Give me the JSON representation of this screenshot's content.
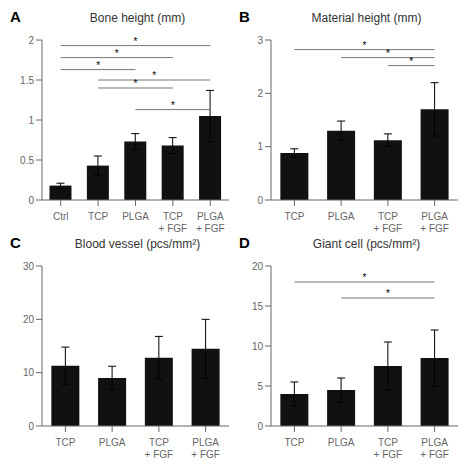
{
  "chart_data": [
    {
      "type": "bar",
      "title": "Bone height (mm)",
      "annotations": [
        "A"
      ],
      "categories": [
        "Ctrl",
        "TCP",
        "PLGA",
        "TCP\n+ FGF",
        "PLGA\n+ FGF"
      ],
      "values": [
        0.18,
        0.43,
        0.73,
        0.68,
        1.05
      ],
      "errors": [
        0.03,
        0.12,
        0.1,
        0.1,
        0.32
      ],
      "color": "#111111",
      "ylim": [
        0,
        2
      ],
      "yticks": [
        0,
        0.5,
        1,
        1.5,
        2
      ],
      "significance": [
        {
          "from": "Ctrl",
          "to": "PLGA\n+ FGF",
          "y": 1.93,
          "label": "*",
          "color": "#777777"
        },
        {
          "from": "Ctrl",
          "to": "TCP\n+ FGF",
          "y": 1.78,
          "label": "*",
          "color": "#777777"
        },
        {
          "from": "Ctrl",
          "to": "PLGA",
          "y": 1.63,
          "label": "*",
          "color": "#777777"
        },
        {
          "from": "TCP",
          "to": "PLGA\n+ FGF",
          "y": 1.5,
          "label": "*",
          "color": "#777777"
        },
        {
          "from": "TCP",
          "to": "TCP\n+ FGF",
          "y": 1.4,
          "label": "*",
          "color": "#777777"
        },
        {
          "from": "PLGA",
          "to": "PLGA\n+ FGF",
          "y": 1.13,
          "label": "*",
          "color": "#777777"
        }
      ]
    },
    {
      "type": "bar",
      "title": "Material height (mm)",
      "annotations": [
        "B"
      ],
      "categories": [
        "TCP",
        "PLGA",
        "TCP\n+ FGF",
        "PLGA\n+ FGF"
      ],
      "values": [
        0.88,
        1.3,
        1.12,
        1.7
      ],
      "errors": [
        0.08,
        0.18,
        0.12,
        0.5
      ],
      "color": "#111111",
      "ylim": [
        0,
        3
      ],
      "yticks": [
        0,
        1,
        2,
        3
      ],
      "significance": [
        {
          "from": "TCP",
          "to": "PLGA\n+ FGF",
          "y": 2.82,
          "label": "*",
          "color": "#777777"
        },
        {
          "from": "PLGA",
          "to": "PLGA\n+ FGF",
          "y": 2.67,
          "label": "*",
          "color": "#777777"
        },
        {
          "from": "TCP\n+ FGF",
          "to": "PLGA\n+ FGF",
          "y": 2.52,
          "label": "*",
          "color": "#777777"
        }
      ]
    },
    {
      "type": "bar",
      "title": "Blood vessel (pcs/mm²)",
      "annotations": [
        "C"
      ],
      "categories": [
        "TCP",
        "PLGA",
        "TCP\n+ FGF",
        "PLGA\n+ FGF"
      ],
      "values": [
        11.3,
        9.0,
        12.8,
        14.5
      ],
      "errors": [
        3.5,
        2.2,
        4.0,
        5.5
      ],
      "color": "#111111",
      "ylim": [
        0,
        30
      ],
      "yticks": [
        0,
        10,
        20,
        30
      ],
      "significance": []
    },
    {
      "type": "bar",
      "title": "Giant cell (pcs/mm²)",
      "annotations": [
        "D"
      ],
      "categories": [
        "TCP",
        "PLGA",
        "TCP\n+ FGF",
        "PLGA\n+ FGF"
      ],
      "values": [
        4.0,
        4.5,
        7.5,
        8.5
      ],
      "errors": [
        1.5,
        1.5,
        3.0,
        3.5
      ],
      "color": "#111111",
      "ylim": [
        0,
        20
      ],
      "yticks": [
        0,
        5,
        10,
        15,
        20
      ],
      "significance": [
        {
          "from": "TCP",
          "to": "PLGA\n+ FGF",
          "y": 18.0,
          "label": "*",
          "color": "#777777"
        },
        {
          "from": "PLGA",
          "to": "PLGA\n+ FGF",
          "y": 16.0,
          "label": "*",
          "color": "#777777"
        }
      ]
    }
  ]
}
